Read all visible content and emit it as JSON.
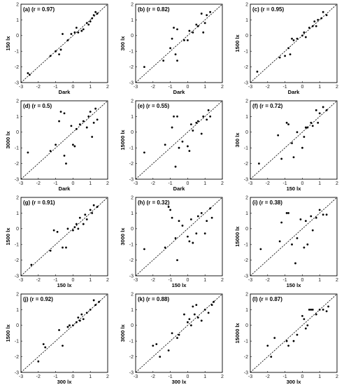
{
  "chart_data": [
    {
      "type": "scatter",
      "panel": "(a)",
      "corr": "(r = 0.97)",
      "xlabel": "Dark",
      "ylabel": "150 lx",
      "xlim": [
        -3,
        2
      ],
      "ylim": [
        -3,
        2
      ],
      "xticks": [
        "-3",
        "-2",
        "-1",
        "0",
        "1",
        "2"
      ],
      "yticks": [
        "-3",
        "-2",
        "-1",
        "0",
        "1",
        "2"
      ],
      "diagonal": true,
      "points": [
        [
          -2.6,
          -2.4
        ],
        [
          -2.5,
          -2.5
        ],
        [
          -1.3,
          -1.3
        ],
        [
          -1.0,
          -1.0
        ],
        [
          -0.8,
          -1.2
        ],
        [
          -0.7,
          -0.9
        ],
        [
          -0.6,
          0.1
        ],
        [
          -0.3,
          -0.3
        ],
        [
          -0.1,
          0.1
        ],
        [
          0.1,
          0.2
        ],
        [
          0.2,
          0.5
        ],
        [
          0.3,
          0.2
        ],
        [
          0.5,
          0.3
        ],
        [
          0.6,
          0.4
        ],
        [
          0.8,
          0.8
        ],
        [
          0.9,
          0.7
        ],
        [
          1.0,
          0.9
        ],
        [
          1.1,
          1.1
        ],
        [
          1.2,
          1.3
        ],
        [
          1.3,
          1.5
        ],
        [
          1.4,
          1.4
        ]
      ]
    },
    {
      "type": "scatter",
      "panel": "(b)",
      "corr": "(r = 0.82)",
      "xlabel": "Dark",
      "ylabel": "300 lx",
      "xlim": [
        -3,
        2
      ],
      "ylim": [
        -3,
        2
      ],
      "xticks": [
        "-3",
        "-2",
        "-1",
        "0",
        "1",
        "2"
      ],
      "yticks": [
        "-3",
        "-2",
        "-1",
        "0",
        "1",
        "2"
      ],
      "diagonal": true,
      "points": [
        [
          -2.5,
          -2.0
        ],
        [
          -1.4,
          -1.6
        ],
        [
          -1.0,
          -0.8
        ],
        [
          -0.9,
          -0.2
        ],
        [
          -0.8,
          0.5
        ],
        [
          -0.7,
          -1.2
        ],
        [
          -0.6,
          -1.6
        ],
        [
          -0.6,
          0.4
        ],
        [
          -0.2,
          -0.3
        ],
        [
          0.0,
          -0.3
        ],
        [
          0.1,
          0.3
        ],
        [
          0.3,
          0.2
        ],
        [
          0.5,
          0.7
        ],
        [
          0.6,
          0.6
        ],
        [
          0.8,
          1.4
        ],
        [
          0.9,
          0.2
        ],
        [
          1.0,
          0.8
        ],
        [
          1.1,
          1.3
        ],
        [
          1.3,
          1.5
        ]
      ]
    },
    {
      "type": "scatter",
      "panel": "(c)",
      "corr": "(r = 0.95)",
      "xlabel": "Dark",
      "ylabel": "1500 lx",
      "xlim": [
        -3,
        2
      ],
      "ylim": [
        -3,
        2
      ],
      "xticks": [
        "-3",
        "-2",
        "-1",
        "0",
        "1",
        "2"
      ],
      "yticks": [
        "-3",
        "-2",
        "-1",
        "0",
        "1",
        "2"
      ],
      "diagonal": true,
      "points": [
        [
          -2.6,
          -2.3
        ],
        [
          -1.3,
          -1.4
        ],
        [
          -1.0,
          -1.3
        ],
        [
          -0.8,
          -0.8
        ],
        [
          -0.7,
          -1.2
        ],
        [
          -0.6,
          -0.2
        ],
        [
          -0.5,
          -0.3
        ],
        [
          -0.3,
          -0.2
        ],
        [
          0.0,
          0.0
        ],
        [
          0.1,
          0.2
        ],
        [
          0.2,
          -0.1
        ],
        [
          0.4,
          0.5
        ],
        [
          0.6,
          0.6
        ],
        [
          0.7,
          0.9
        ],
        [
          0.8,
          0.6
        ],
        [
          0.9,
          1.0
        ],
        [
          1.1,
          1.1
        ],
        [
          1.2,
          1.5
        ],
        [
          1.4,
          1.3
        ]
      ]
    },
    {
      "type": "scatter",
      "panel": "(d)",
      "corr": "(r = 0.5)",
      "xlabel": "Dark",
      "ylabel": "3000 lx",
      "xlim": [
        -3,
        2
      ],
      "ylim": [
        -3,
        2
      ],
      "xticks": [
        "-3",
        "-2",
        "-1",
        "0",
        "1",
        "2"
      ],
      "yticks": [
        "-3",
        "-2",
        "-1",
        "0",
        "1",
        "2"
      ],
      "diagonal": true,
      "points": [
        [
          -2.6,
          -1.3
        ],
        [
          -1.3,
          -1.2
        ],
        [
          -1.0,
          -0.8
        ],
        [
          -0.8,
          0.7
        ],
        [
          -0.7,
          1.3
        ],
        [
          -0.5,
          -1.5
        ],
        [
          -0.5,
          1.2
        ],
        [
          -0.4,
          -2.0
        ],
        [
          -0.1,
          0.4
        ],
        [
          0.0,
          -0.8
        ],
        [
          0.1,
          -0.9
        ],
        [
          0.2,
          0.2
        ],
        [
          0.4,
          0.5
        ],
        [
          0.6,
          0.7
        ],
        [
          0.8,
          0.3
        ],
        [
          0.9,
          1.0
        ],
        [
          1.0,
          1.3
        ],
        [
          1.1,
          -0.3
        ],
        [
          1.2,
          0.6
        ],
        [
          1.3,
          1.5
        ],
        [
          1.4,
          0.8
        ]
      ]
    },
    {
      "type": "scatter",
      "panel": "(e)",
      "corr": "(r = 0.55)",
      "xlabel": "Dark",
      "ylabel": "15000 lx",
      "xlim": [
        -3,
        2
      ],
      "ylim": [
        -3,
        2
      ],
      "xticks": [
        "-3",
        "-2",
        "-1",
        "0",
        "1",
        "2"
      ],
      "yticks": [
        "-3",
        "-2",
        "-1",
        "0",
        "1",
        "2"
      ],
      "diagonal": true,
      "points": [
        [
          -2.5,
          -1.3
        ],
        [
          -1.3,
          -0.8
        ],
        [
          -0.9,
          0.3
        ],
        [
          -0.8,
          1.0
        ],
        [
          -0.7,
          -2.2
        ],
        [
          -0.6,
          1.0
        ],
        [
          -0.5,
          -1.0
        ],
        [
          -0.3,
          -0.6
        ],
        [
          0.0,
          -0.9
        ],
        [
          0.1,
          -1.2
        ],
        [
          0.2,
          0.5
        ],
        [
          0.3,
          0.1
        ],
        [
          0.5,
          0.6
        ],
        [
          0.6,
          0.7
        ],
        [
          0.8,
          -0.1
        ],
        [
          0.9,
          1.0
        ],
        [
          1.1,
          0.8
        ],
        [
          1.2,
          1.4
        ],
        [
          1.3,
          1.0
        ]
      ]
    },
    {
      "type": "scatter",
      "panel": "(f)",
      "corr": "(r = 0.72)",
      "xlabel": "150 lx",
      "ylabel": "300 lx",
      "xlim": [
        -3,
        2
      ],
      "ylim": [
        -3,
        2
      ],
      "xticks": [
        "-3",
        "-2",
        "-1",
        "0",
        "1",
        "2"
      ],
      "yticks": [
        "-3",
        "-2",
        "-1",
        "0",
        "1",
        "2"
      ],
      "diagonal": true,
      "points": [
        [
          -2.5,
          -2.0
        ],
        [
          -1.4,
          -0.2
        ],
        [
          -1.2,
          -1.7
        ],
        [
          -0.9,
          0.6
        ],
        [
          -0.8,
          0.5
        ],
        [
          -0.6,
          -0.7
        ],
        [
          -0.5,
          -1.6
        ],
        [
          -0.3,
          0.0
        ],
        [
          0.0,
          -1.0
        ],
        [
          0.1,
          -0.3
        ],
        [
          0.2,
          0.3
        ],
        [
          0.3,
          0.3
        ],
        [
          0.5,
          0.6
        ],
        [
          0.6,
          0.4
        ],
        [
          0.8,
          1.4
        ],
        [
          0.9,
          0.6
        ],
        [
          1.0,
          1.2
        ],
        [
          1.2,
          1.6
        ],
        [
          1.4,
          1.4
        ]
      ]
    },
    {
      "type": "scatter",
      "panel": "(g)",
      "corr": "(r = 0.91)",
      "xlabel": "150 lx",
      "ylabel": "1500 lx",
      "xlim": [
        -3,
        2
      ],
      "ylim": [
        -3,
        2
      ],
      "xticks": [
        "-3",
        "-2",
        "-1",
        "0",
        "1",
        "2"
      ],
      "yticks": [
        "-3",
        "-2",
        "-1",
        "0",
        "1",
        "2"
      ],
      "diagonal": true,
      "points": [
        [
          -2.4,
          -2.3
        ],
        [
          -1.3,
          -1.4
        ],
        [
          -1.1,
          -0.1
        ],
        [
          -0.9,
          -0.2
        ],
        [
          -0.6,
          -1.2
        ],
        [
          -0.4,
          -1.2
        ],
        [
          -0.3,
          0.0
        ],
        [
          0.0,
          -0.1
        ],
        [
          0.1,
          0.1
        ],
        [
          0.2,
          0.3
        ],
        [
          0.3,
          0.0
        ],
        [
          0.4,
          0.7
        ],
        [
          0.6,
          0.3
        ],
        [
          0.7,
          0.9
        ],
        [
          0.8,
          0.6
        ],
        [
          1.0,
          1.2
        ],
        [
          1.1,
          1.0
        ],
        [
          1.2,
          1.5
        ],
        [
          1.4,
          1.4
        ]
      ]
    },
    {
      "type": "scatter",
      "panel": "(h)",
      "corr": "(r = 0.32)",
      "xlabel": "150 lx",
      "ylabel": "3000 lx",
      "xlim": [
        -3,
        2
      ],
      "ylim": [
        -3,
        2
      ],
      "xticks": [
        "-3",
        "-2",
        "-1",
        "0",
        "1",
        "2"
      ],
      "yticks": [
        "-3",
        "-2",
        "-1",
        "0",
        "1",
        "2"
      ],
      "diagonal": true,
      "points": [
        [
          -2.5,
          -1.3
        ],
        [
          -1.3,
          -1.2
        ],
        [
          -1.1,
          1.4
        ],
        [
          -1.0,
          1.2
        ],
        [
          -0.9,
          0.7
        ],
        [
          -0.7,
          -0.6
        ],
        [
          -0.6,
          -2.0
        ],
        [
          -0.5,
          0.5
        ],
        [
          -0.3,
          0.2
        ],
        [
          0.0,
          -0.5
        ],
        [
          0.1,
          -0.8
        ],
        [
          0.2,
          0.6
        ],
        [
          0.3,
          -0.9
        ],
        [
          0.5,
          -0.3
        ],
        [
          0.6,
          0.8
        ],
        [
          0.8,
          1.0
        ],
        [
          1.0,
          -0.3
        ],
        [
          1.1,
          0.5
        ],
        [
          1.3,
          1.3
        ],
        [
          1.4,
          0.7
        ]
      ]
    },
    {
      "type": "scatter",
      "panel": "(i)",
      "corr": "(r = 0.38)",
      "xlabel": "150 lx",
      "ylabel": "15000 lx",
      "xlim": [
        -3,
        2
      ],
      "ylim": [
        -3,
        2
      ],
      "xticks": [
        "-3",
        "-2",
        "-1",
        "0",
        "1",
        "2"
      ],
      "yticks": [
        "-3",
        "-2",
        "-1",
        "0",
        "1",
        "2"
      ],
      "diagonal": true,
      "points": [
        [
          -2.4,
          -1.3
        ],
        [
          -1.3,
          -0.8
        ],
        [
          -1.2,
          0.4
        ],
        [
          -0.9,
          1.0
        ],
        [
          -0.8,
          1.0
        ],
        [
          -0.6,
          -1.0
        ],
        [
          -0.4,
          -2.2
        ],
        [
          -0.3,
          -0.6
        ],
        [
          -0.1,
          0.6
        ],
        [
          0.1,
          -1.2
        ],
        [
          0.2,
          0.5
        ],
        [
          0.3,
          -1.0
        ],
        [
          0.5,
          0.8
        ],
        [
          0.6,
          -0.1
        ],
        [
          0.8,
          0.7
        ],
        [
          1.0,
          1.2
        ],
        [
          1.2,
          0.9
        ],
        [
          1.4,
          0.9
        ]
      ]
    },
    {
      "type": "scatter",
      "panel": "(j)",
      "corr": "(r = 0.92)",
      "xlabel": "300 lx",
      "ylabel": "1500 lx",
      "xlim": [
        -3,
        2
      ],
      "ylim": [
        -3,
        2
      ],
      "xticks": [
        "-3",
        "-2",
        "-1",
        "0",
        "1",
        "2"
      ],
      "yticks": [
        "-3",
        "-2",
        "-1",
        "0",
        "1",
        "2"
      ],
      "diagonal": true,
      "points": [
        [
          -2.0,
          -2.3
        ],
        [
          -1.7,
          -1.2
        ],
        [
          -1.6,
          -1.4
        ],
        [
          -0.8,
          -0.3
        ],
        [
          -0.6,
          -1.3
        ],
        [
          -0.3,
          -0.1
        ],
        [
          -0.2,
          0.0
        ],
        [
          0.0,
          0.0
        ],
        [
          0.2,
          0.2
        ],
        [
          0.3,
          0.5
        ],
        [
          0.4,
          0.3
        ],
        [
          0.5,
          0.7
        ],
        [
          0.6,
          0.4
        ],
        [
          0.8,
          0.8
        ],
        [
          1.0,
          1.0
        ],
        [
          1.2,
          1.6
        ],
        [
          1.3,
          1.3
        ],
        [
          1.5,
          1.5
        ]
      ]
    },
    {
      "type": "scatter",
      "panel": "(k)",
      "corr": "(r = 0.88)",
      "xlabel": "300 lx",
      "ylabel": "3000 lx",
      "xlim": [
        -3,
        2
      ],
      "ylim": [
        -3,
        2
      ],
      "xticks": [
        "-3",
        "-2",
        "-1",
        "0",
        "1",
        "2"
      ],
      "yticks": [
        "-3",
        "-2",
        "-1",
        "0",
        "1",
        "2"
      ],
      "diagonal": true,
      "points": [
        [
          -2.0,
          -1.3
        ],
        [
          -1.8,
          -1.2
        ],
        [
          -1.6,
          -2.0
        ],
        [
          -1.1,
          -1.6
        ],
        [
          -0.9,
          -0.5
        ],
        [
          -0.6,
          -0.8
        ],
        [
          -0.5,
          -0.6
        ],
        [
          -0.2,
          0.7
        ],
        [
          0.0,
          0.2
        ],
        [
          0.1,
          0.4
        ],
        [
          0.2,
          0.0
        ],
        [
          0.3,
          1.2
        ],
        [
          0.4,
          0.7
        ],
        [
          0.5,
          1.3
        ],
        [
          0.6,
          0.5
        ],
        [
          0.8,
          0.3
        ],
        [
          1.0,
          1.0
        ],
        [
          1.2,
          0.8
        ],
        [
          1.4,
          1.3
        ],
        [
          1.5,
          1.5
        ]
      ]
    },
    {
      "type": "scatter",
      "panel": "(l)",
      "corr": "(r = 0.87)",
      "xlabel": "300 lx",
      "ylabel": "15000 lx",
      "xlim": [
        -3,
        2
      ],
      "ylim": [
        -3,
        2
      ],
      "xticks": [
        "-3",
        "-2",
        "-1",
        "0",
        "1",
        "2"
      ],
      "yticks": [
        "-3",
        "-2",
        "-1",
        "0",
        "1",
        "2"
      ],
      "diagonal": true,
      "points": [
        [
          -2.0,
          -1.3
        ],
        [
          -1.8,
          -2.0
        ],
        [
          -1.6,
          -0.8
        ],
        [
          -0.9,
          -1.0
        ],
        [
          -0.8,
          -1.3
        ],
        [
          -0.5,
          -1.0
        ],
        [
          -0.3,
          -0.6
        ],
        [
          0.0,
          0.6
        ],
        [
          0.1,
          0.4
        ],
        [
          0.2,
          -0.2
        ],
        [
          0.3,
          0.0
        ],
        [
          0.4,
          1.0
        ],
        [
          0.5,
          1.0
        ],
        [
          0.6,
          1.0
        ],
        [
          0.8,
          0.7
        ],
        [
          1.0,
          1.0
        ],
        [
          1.2,
          1.0
        ],
        [
          1.4,
          0.9
        ],
        [
          1.5,
          1.2
        ]
      ]
    }
  ]
}
